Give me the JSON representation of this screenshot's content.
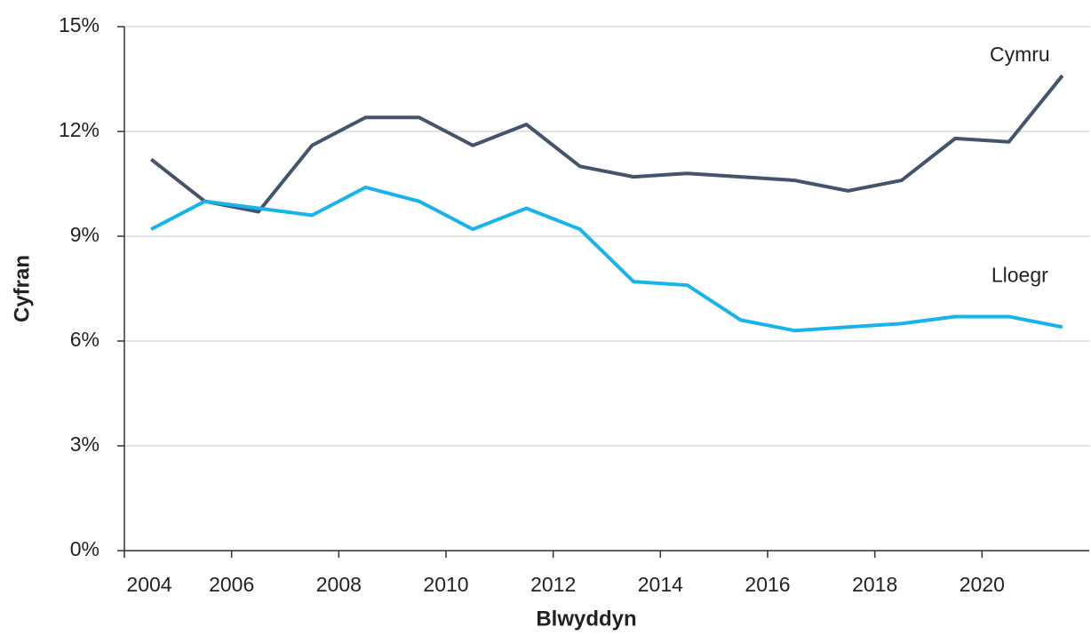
{
  "chart_data": {
    "type": "line",
    "x_label": "Blwyddyn",
    "y_label": "Cyfran",
    "x": [
      2004.5,
      2005.5,
      2006.5,
      2007.5,
      2008.5,
      2009.5,
      2010.5,
      2011.5,
      2012.5,
      2013.5,
      2014.5,
      2015.5,
      2016.5,
      2017.5,
      2018.5,
      2019.5,
      2020.5,
      2021.5
    ],
    "series": [
      {
        "name": "Cymru",
        "color": "#44546a",
        "values": [
          11.2,
          10.0,
          9.7,
          11.6,
          12.4,
          12.4,
          11.6,
          12.2,
          11.0,
          10.7,
          10.8,
          10.7,
          10.6,
          10.3,
          10.6,
          11.8,
          11.7,
          13.6
        ]
      },
      {
        "name": "Lloegr",
        "color": "#19b3ec",
        "values": [
          9.2,
          10.0,
          9.8,
          9.6,
          10.4,
          10.0,
          9.2,
          9.8,
          9.2,
          7.7,
          7.6,
          6.6,
          6.3,
          6.4,
          6.5,
          6.7,
          6.7,
          6.4
        ]
      }
    ],
    "xlim": [
      2004,
      2022
    ],
    "xticks": [
      2004,
      2006,
      2008,
      2010,
      2012,
      2014,
      2016,
      2018,
      2020
    ],
    "ylim": [
      0,
      15
    ],
    "yticks": [
      {
        "value": 0,
        "label": "0%"
      },
      {
        "value": 3,
        "label": "3%"
      },
      {
        "value": 6,
        "label": "6%"
      },
      {
        "value": 9,
        "label": "9%"
      },
      {
        "value": 12,
        "label": "12%"
      },
      {
        "value": 15,
        "label": "15%"
      }
    ],
    "grid": true
  }
}
